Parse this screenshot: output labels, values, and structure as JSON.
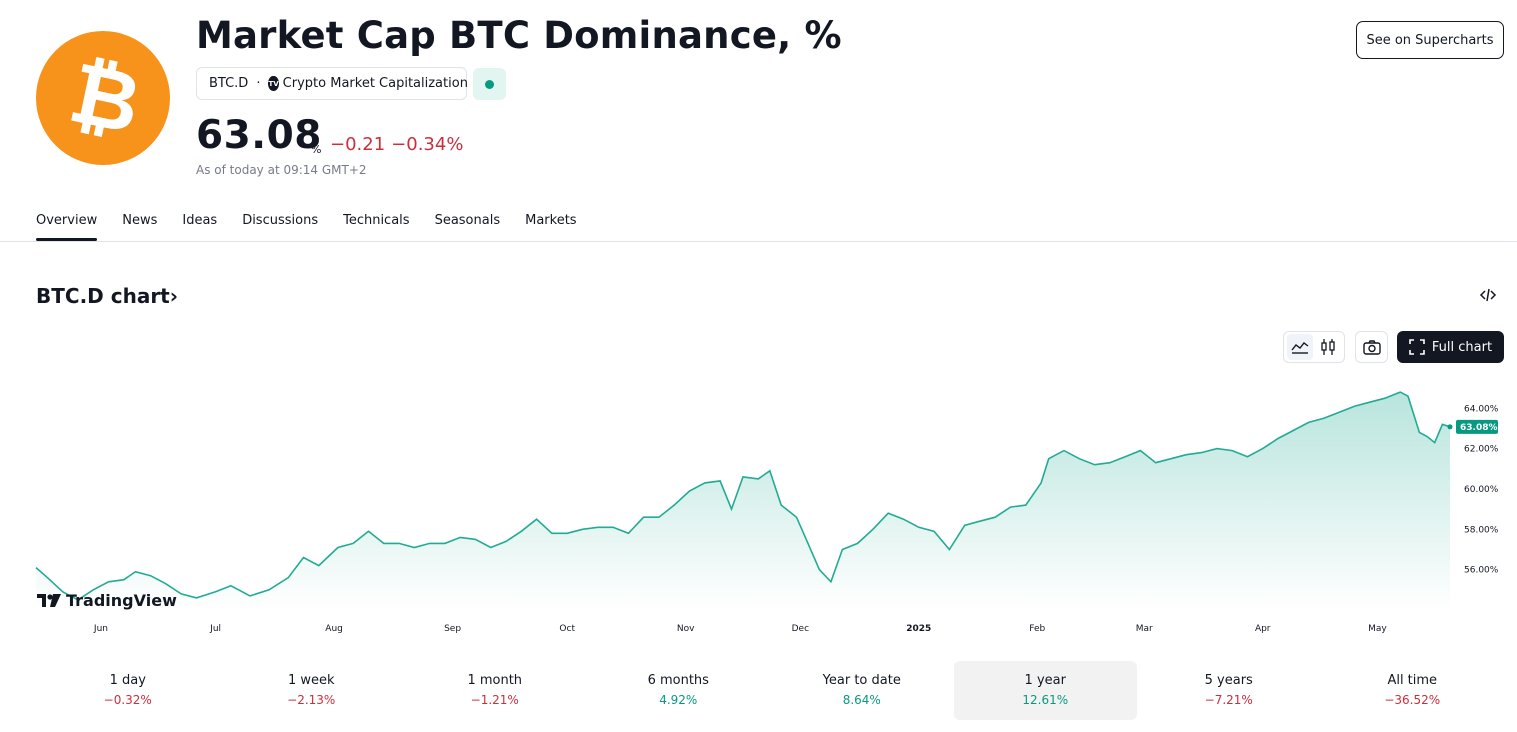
{
  "header": {
    "logo_symbol": "₿",
    "title": "Market Cap BTC Dominance, %",
    "ticker": "BTC.D",
    "separator": "·",
    "source": "Crypto Market Capitalization",
    "source_icon": "tradingview-icon",
    "status": "market-open-dot",
    "price": "63.08",
    "unit": "%",
    "change_abs": "−0.21",
    "change_pct": "−0.34%",
    "as_of": "As of today at 09:14 GMT+2",
    "supercharts_label": "See on Supercharts"
  },
  "tabs": [
    {
      "label": "Overview",
      "active": true
    },
    {
      "label": "News"
    },
    {
      "label": "Ideas"
    },
    {
      "label": "Discussions"
    },
    {
      "label": "Technicals"
    },
    {
      "label": "Seasonals"
    },
    {
      "label": "Markets"
    }
  ],
  "chart_section": {
    "heading": "BTC.D chart",
    "chevron": "›",
    "embed_icon": "code-icon",
    "fullchart_label": "Full chart",
    "brand": "TradingView"
  },
  "chart_data": {
    "type": "area",
    "ylim": [
      54.0,
      65.5
    ],
    "y_ticks": [
      "64.00%",
      "62.00%",
      "60.00%",
      "58.00%",
      "56.00%"
    ],
    "y_tick_values": [
      64,
      62,
      60,
      58,
      56
    ],
    "x_ticks": [
      "Jun",
      "Jul",
      "Aug",
      "Sep",
      "Oct",
      "Nov",
      "Dec",
      "2025",
      "Feb",
      "Mar",
      "Apr",
      "May"
    ],
    "last_value_label": "63.08%",
    "last_value": 63.08,
    "line_color": "#22ab94",
    "fill_color": "#22ab94",
    "series_points": [
      [
        "2024-05-15",
        56.1
      ],
      [
        "2024-05-18",
        55.6
      ],
      [
        "2024-05-22",
        54.9
      ],
      [
        "2024-05-26",
        54.5
      ],
      [
        "2024-05-30",
        55.0
      ],
      [
        "2024-06-03",
        55.4
      ],
      [
        "2024-06-07",
        55.5
      ],
      [
        "2024-06-10",
        55.9
      ],
      [
        "2024-06-14",
        55.7
      ],
      [
        "2024-06-18",
        55.3
      ],
      [
        "2024-06-22",
        54.8
      ],
      [
        "2024-06-26",
        54.6
      ],
      [
        "2024-07-01",
        54.9
      ],
      [
        "2024-07-05",
        55.2
      ],
      [
        "2024-07-10",
        54.7
      ],
      [
        "2024-07-15",
        55.0
      ],
      [
        "2024-07-20",
        55.6
      ],
      [
        "2024-07-24",
        56.6
      ],
      [
        "2024-07-28",
        56.2
      ],
      [
        "2024-08-02",
        57.1
      ],
      [
        "2024-08-06",
        57.3
      ],
      [
        "2024-08-10",
        57.9
      ],
      [
        "2024-08-14",
        57.3
      ],
      [
        "2024-08-18",
        57.3
      ],
      [
        "2024-08-22",
        57.1
      ],
      [
        "2024-08-26",
        57.3
      ],
      [
        "2024-08-30",
        57.3
      ],
      [
        "2024-09-03",
        57.6
      ],
      [
        "2024-09-07",
        57.5
      ],
      [
        "2024-09-11",
        57.1
      ],
      [
        "2024-09-15",
        57.4
      ],
      [
        "2024-09-19",
        57.9
      ],
      [
        "2024-09-23",
        58.5
      ],
      [
        "2024-09-27",
        57.8
      ],
      [
        "2024-10-01",
        57.8
      ],
      [
        "2024-10-05",
        58.0
      ],
      [
        "2024-10-09",
        58.1
      ],
      [
        "2024-10-13",
        58.1
      ],
      [
        "2024-10-17",
        57.8
      ],
      [
        "2024-10-21",
        58.6
      ],
      [
        "2024-10-25",
        58.6
      ],
      [
        "2024-10-29",
        59.2
      ],
      [
        "2024-11-02",
        59.9
      ],
      [
        "2024-11-06",
        60.3
      ],
      [
        "2024-11-10",
        60.4
      ],
      [
        "2024-11-13",
        59.0
      ],
      [
        "2024-11-16",
        60.6
      ],
      [
        "2024-11-20",
        60.5
      ],
      [
        "2024-11-23",
        60.9
      ],
      [
        "2024-11-26",
        59.2
      ],
      [
        "2024-11-30",
        58.6
      ],
      [
        "2024-12-03",
        57.3
      ],
      [
        "2024-12-06",
        56.0
      ],
      [
        "2024-12-09",
        55.4
      ],
      [
        "2024-12-12",
        57.0
      ],
      [
        "2024-12-16",
        57.3
      ],
      [
        "2024-12-20",
        58.0
      ],
      [
        "2024-12-24",
        58.8
      ],
      [
        "2024-12-28",
        58.5
      ],
      [
        "2025-01-01",
        58.1
      ],
      [
        "2025-01-05",
        57.9
      ],
      [
        "2025-01-09",
        57.0
      ],
      [
        "2025-01-13",
        58.2
      ],
      [
        "2025-01-17",
        58.4
      ],
      [
        "2025-01-21",
        58.6
      ],
      [
        "2025-01-25",
        59.1
      ],
      [
        "2025-01-29",
        59.2
      ],
      [
        "2025-02-02",
        60.3
      ],
      [
        "2025-02-04",
        61.5
      ],
      [
        "2025-02-08",
        61.9
      ],
      [
        "2025-02-12",
        61.5
      ],
      [
        "2025-02-16",
        61.2
      ],
      [
        "2025-02-20",
        61.3
      ],
      [
        "2025-02-24",
        61.6
      ],
      [
        "2025-02-28",
        61.9
      ],
      [
        "2025-03-04",
        61.3
      ],
      [
        "2025-03-08",
        61.5
      ],
      [
        "2025-03-12",
        61.7
      ],
      [
        "2025-03-16",
        61.8
      ],
      [
        "2025-03-20",
        62.0
      ],
      [
        "2025-03-24",
        61.9
      ],
      [
        "2025-03-28",
        61.6
      ],
      [
        "2025-04-01",
        62.0
      ],
      [
        "2025-04-05",
        62.5
      ],
      [
        "2025-04-09",
        62.9
      ],
      [
        "2025-04-13",
        63.3
      ],
      [
        "2025-04-17",
        63.5
      ],
      [
        "2025-04-21",
        63.8
      ],
      [
        "2025-04-25",
        64.1
      ],
      [
        "2025-04-29",
        64.3
      ],
      [
        "2025-05-03",
        64.5
      ],
      [
        "2025-05-07",
        64.8
      ],
      [
        "2025-05-09",
        64.6
      ],
      [
        "2025-05-12",
        62.8
      ],
      [
        "2025-05-14",
        62.6
      ],
      [
        "2025-05-16",
        62.3
      ],
      [
        "2025-05-18",
        63.2
      ],
      [
        "2025-05-20",
        63.08
      ]
    ]
  },
  "periods": [
    {
      "label": "1 day",
      "value": "−0.32%",
      "dir": "neg"
    },
    {
      "label": "1 week",
      "value": "−2.13%",
      "dir": "neg"
    },
    {
      "label": "1 month",
      "value": "−1.21%",
      "dir": "neg"
    },
    {
      "label": "6 months",
      "value": "4.92%",
      "dir": "pos"
    },
    {
      "label": "Year to date",
      "value": "8.64%",
      "dir": "pos"
    },
    {
      "label": "1 year",
      "value": "12.61%",
      "dir": "pos",
      "active": true
    },
    {
      "label": "5 years",
      "value": "−7.21%",
      "dir": "neg"
    },
    {
      "label": "All time",
      "value": "−36.52%",
      "dir": "neg"
    }
  ]
}
